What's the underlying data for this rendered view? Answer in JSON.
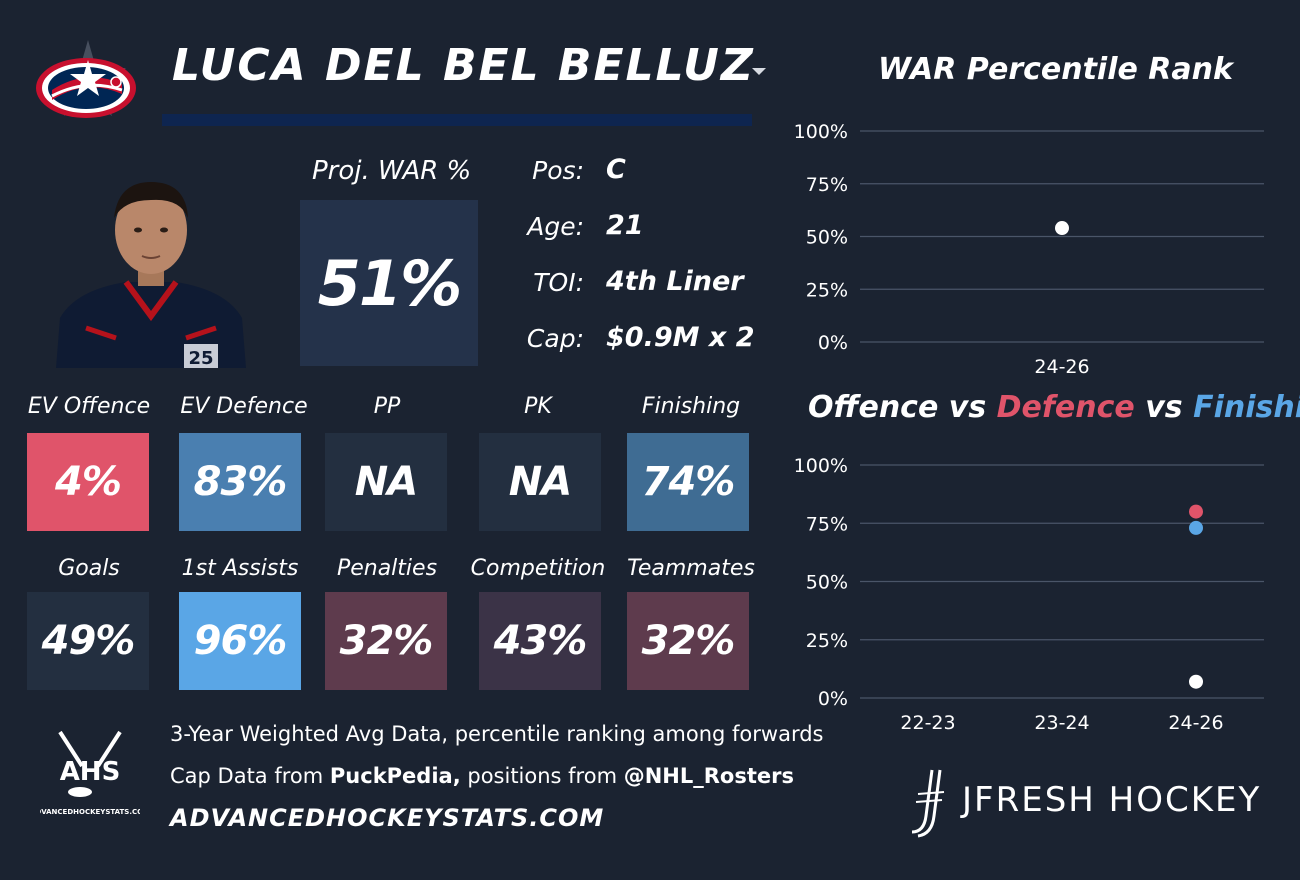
{
  "player": {
    "name": "LUCA DEL BEL BELLUZ",
    "proj_war_label": "Proj. WAR %",
    "proj_war_value": "51%",
    "jersey_number": "25",
    "info": [
      {
        "label": "Pos:",
        "value": "C"
      },
      {
        "label": "Age:",
        "value": "21"
      },
      {
        "label": "TOI:",
        "value": "4th Liner"
      },
      {
        "label": "Cap:",
        "value": "$0.9M x 2"
      }
    ]
  },
  "stats_row1": [
    {
      "label": "EV Offence",
      "value": "4%",
      "color": "#e0546a"
    },
    {
      "label": "EV Defence",
      "value": "83%",
      "color": "#4a7fb0"
    },
    {
      "label": "PP",
      "value": "NA",
      "color": "#232f40"
    },
    {
      "label": "PK",
      "value": "NA",
      "color": "#232f40"
    },
    {
      "label": "Finishing",
      "value": "74%",
      "color": "#3f6c93"
    }
  ],
  "stats_row2": [
    {
      "label": "Goals",
      "value": "49%",
      "color": "#232f40"
    },
    {
      "label": "1st Assists",
      "value": "96%",
      "color": "#5aa6e6"
    },
    {
      "label": "Penalties",
      "value": "32%",
      "color": "#5e3b4d"
    },
    {
      "label": "Competition",
      "value": "43%",
      "color": "#3b3347"
    },
    {
      "label": "Teammates",
      "value": "32%",
      "color": "#5e3b4d"
    }
  ],
  "footer": {
    "line1": "3-Year Weighted Avg Data, percentile ranking among forwards",
    "line2_prefix": "Cap Data from ",
    "line2_puckpedia": "PuckPedia,",
    "line2_mid": " positions from ",
    "line2_rosters": "@NHL_Rosters",
    "site": "ADVANCEDHOCKEYSTATS.COM",
    "ahs_logo_text": "AHS",
    "ahs_logo_sub": "ADVANCEDHOCKEYSTATS.COM",
    "brand": "JFRESH HOCKEY"
  },
  "colors": {
    "background": "#1b2331",
    "offence": "#e0546a",
    "defence": "#e0546a",
    "finishing": "#5aa6e6",
    "war_point": "#ffffff"
  },
  "icons": [
    "blue-jackets-logo-icon",
    "dropdown-caret-icon",
    "player-headshot-icon",
    "ahs-logo-icon",
    "jfresh-logo-icon"
  ],
  "chart_data": [
    {
      "type": "scatter",
      "title": "WAR Percentile Rank",
      "categories": [
        "24-26"
      ],
      "series": [
        {
          "values": [
            54
          ],
          "color": "#ffffff"
        }
      ],
      "ylim": [
        0,
        100
      ],
      "yticks": [
        "100%",
        "75%",
        "50%",
        "25%",
        "0%"
      ],
      "grid": true
    },
    {
      "type": "scatter",
      "title_parts": [
        "Offence",
        " vs ",
        "Defence",
        " vs ",
        "Finishing"
      ],
      "categories": [
        "22-23",
        "23-24",
        "24-26"
      ],
      "series": [
        {
          "name": "Offence",
          "values": [
            null,
            null,
            7
          ],
          "color": "#ffffff"
        },
        {
          "name": "Defence",
          "values": [
            null,
            null,
            80
          ],
          "color": "#e0546a"
        },
        {
          "name": "Finishing",
          "values": [
            null,
            null,
            73
          ],
          "color": "#5aa6e6"
        }
      ],
      "ylim": [
        0,
        100
      ],
      "yticks": [
        "100%",
        "75%",
        "50%",
        "25%",
        "0%"
      ],
      "grid": true
    }
  ]
}
